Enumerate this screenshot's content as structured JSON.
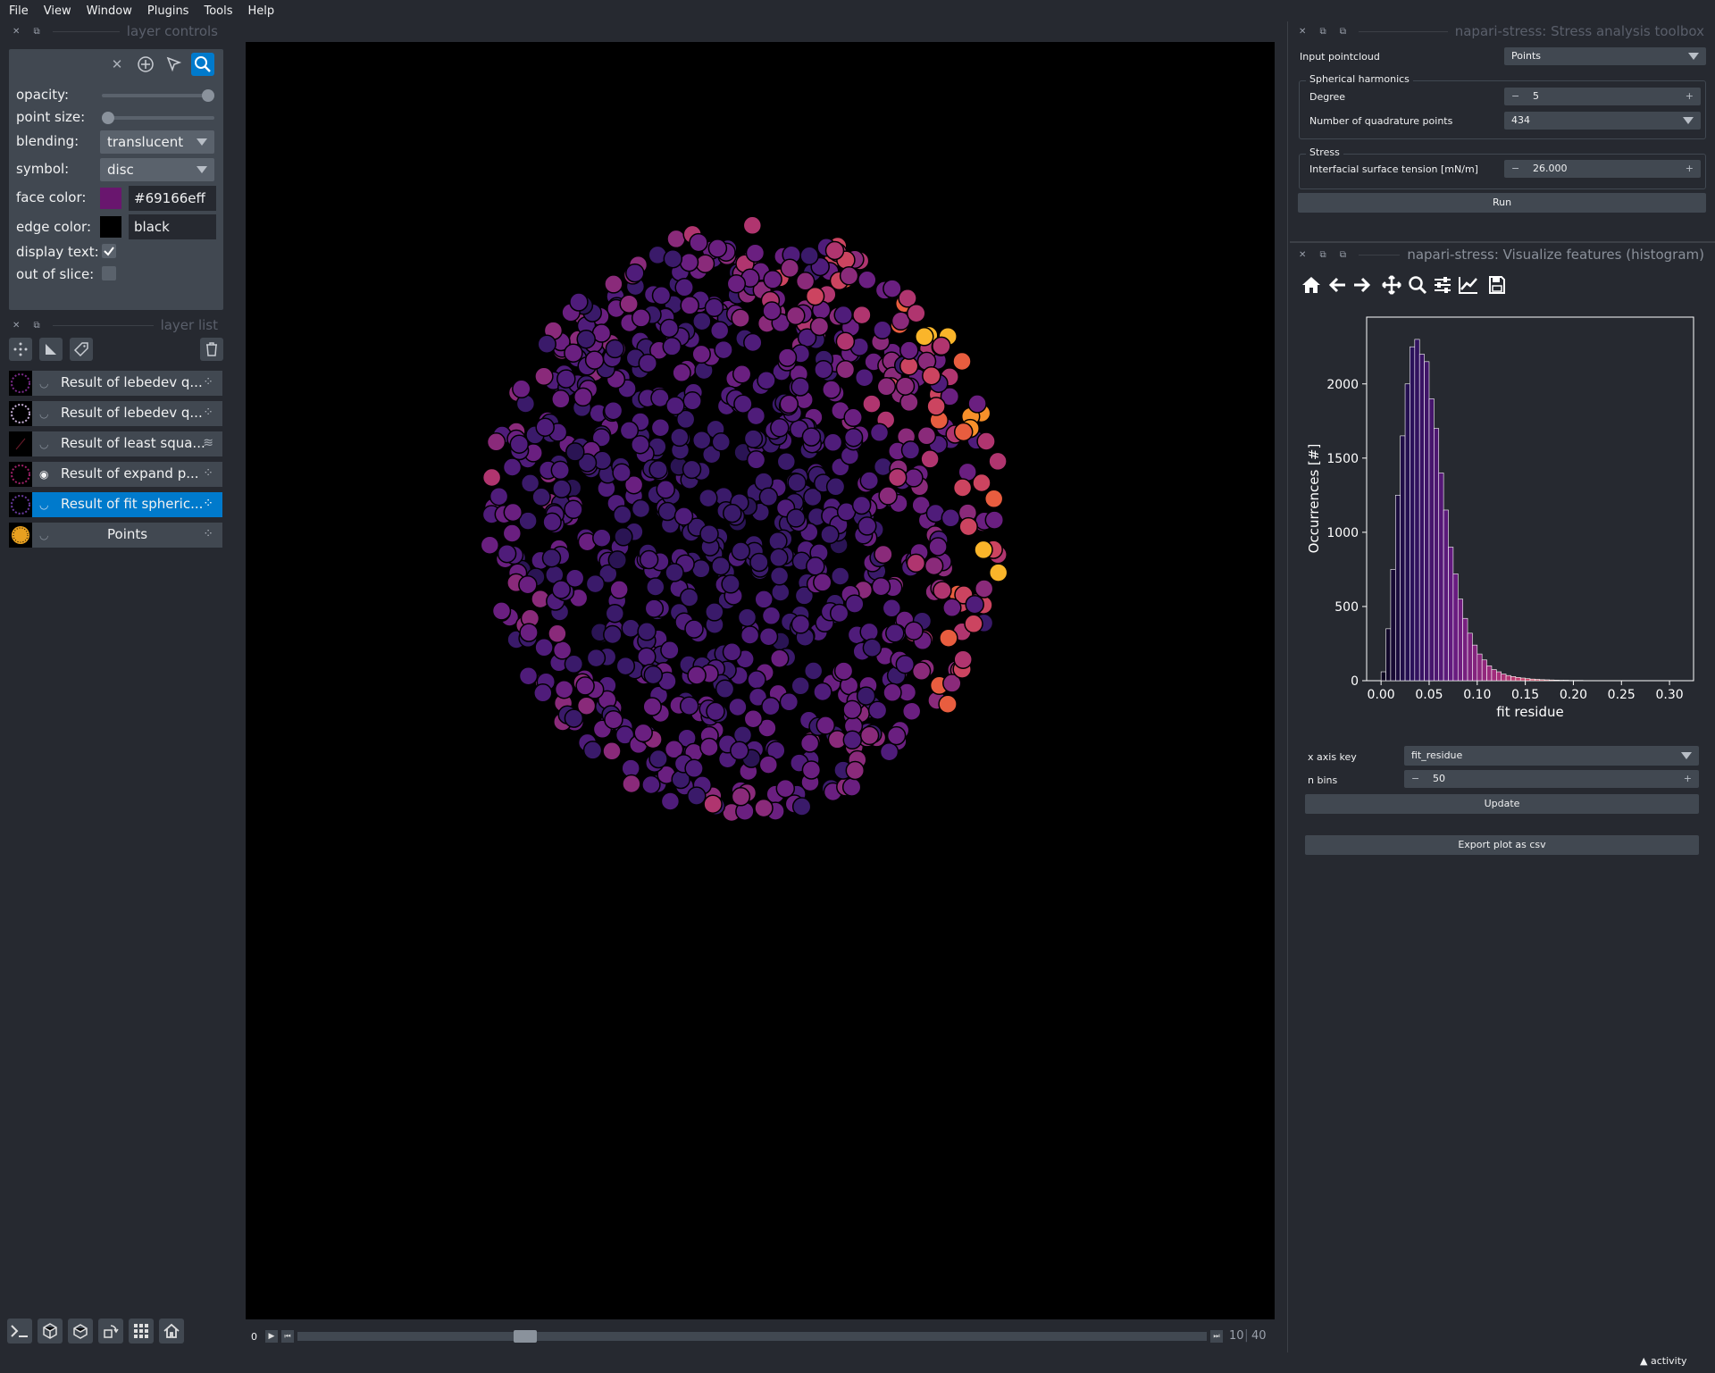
{
  "menu": [
    "File",
    "View",
    "Window",
    "Plugins",
    "Tools",
    "Help"
  ],
  "layer_controls": {
    "title": "layer controls",
    "opacity_label": "opacity:",
    "opacity_value": 1.0,
    "point_size_label": "point size:",
    "blending_label": "blending:",
    "blending_value": "translucent",
    "symbol_label": "symbol:",
    "symbol_value": "disc",
    "face_color_label": "face color:",
    "face_color_value": "#69166eff",
    "face_color_hex": "#69166e",
    "edge_color_label": "edge color:",
    "edge_color_value": "black",
    "edge_color_hex": "#000000",
    "display_text_label": "display text:",
    "display_text_checked": true,
    "out_of_slice_label": "out of slice:",
    "out_of_slice_checked": false
  },
  "layer_list": {
    "title": "layer list",
    "layers": [
      {
        "name": "Result of lebedev q...",
        "visible": false,
        "type": "points",
        "selected": false
      },
      {
        "name": "Result of lebedev q...",
        "visible": false,
        "type": "points",
        "selected": false
      },
      {
        "name": "Result of least squa...",
        "visible": false,
        "type": "vectors",
        "selected": false
      },
      {
        "name": "Result of expand p...",
        "visible": true,
        "type": "points",
        "selected": false
      },
      {
        "name": "Result of fit spheric...",
        "visible": false,
        "type": "points",
        "selected": true
      },
      {
        "name": "Points",
        "visible": false,
        "type": "points",
        "selected": false
      }
    ]
  },
  "dims": {
    "axis_label": "0",
    "current": "10",
    "total": "40",
    "fraction": 0.25
  },
  "stress_toolbox": {
    "title": "napari-stress: Stress analysis toolbox",
    "input_label": "Input pointcloud",
    "input_value": "Points",
    "sph_group": "Spherical harmonics",
    "degree_label": "Degree",
    "degree_value": "5",
    "quad_label": "Number of quadrature points",
    "quad_value": "434",
    "stress_group": "Stress",
    "tension_label": "Interfacial surface tension [mN/m]",
    "tension_value": "26.000",
    "run_label": "Run"
  },
  "histogram_widget": {
    "title": "napari-stress: Visualize features (histogram)",
    "x_axis_key_label": "x axis key",
    "x_axis_key_value": "fit_residue",
    "n_bins_label": "n bins",
    "n_bins_value": "50",
    "update_label": "Update",
    "export_label": "Export plot as csv"
  },
  "chart_data": {
    "type": "bar",
    "xlabel": "fit residue",
    "ylabel": "Occurrences [#]",
    "xlim": [
      -0.015,
      0.325
    ],
    "ylim": [
      0,
      2450
    ],
    "xticks": [
      "0.00",
      "0.05",
      "0.10",
      "0.15",
      "0.20",
      "0.25",
      "0.30"
    ],
    "xtick_values": [
      0.0,
      0.05,
      0.1,
      0.15,
      0.2,
      0.25,
      0.3
    ],
    "yticks": [
      "0",
      "500",
      "1000",
      "1500",
      "2000"
    ],
    "ytick_values": [
      0,
      500,
      1000,
      1500,
      2000
    ],
    "bin_start": 0.0,
    "bin_width": 0.005,
    "values": [
      60,
      350,
      750,
      1250,
      1650,
      2000,
      2250,
      2300,
      2200,
      2150,
      1900,
      1700,
      1400,
      1150,
      900,
      720,
      550,
      420,
      320,
      240,
      180,
      140,
      100,
      75,
      60,
      45,
      35,
      28,
      22,
      18,
      14,
      11,
      9,
      7,
      6,
      5,
      4,
      3,
      3,
      2,
      2,
      2,
      1,
      1,
      1,
      1,
      1,
      1,
      1,
      1
    ]
  },
  "status": {
    "activity_label": "activity"
  }
}
